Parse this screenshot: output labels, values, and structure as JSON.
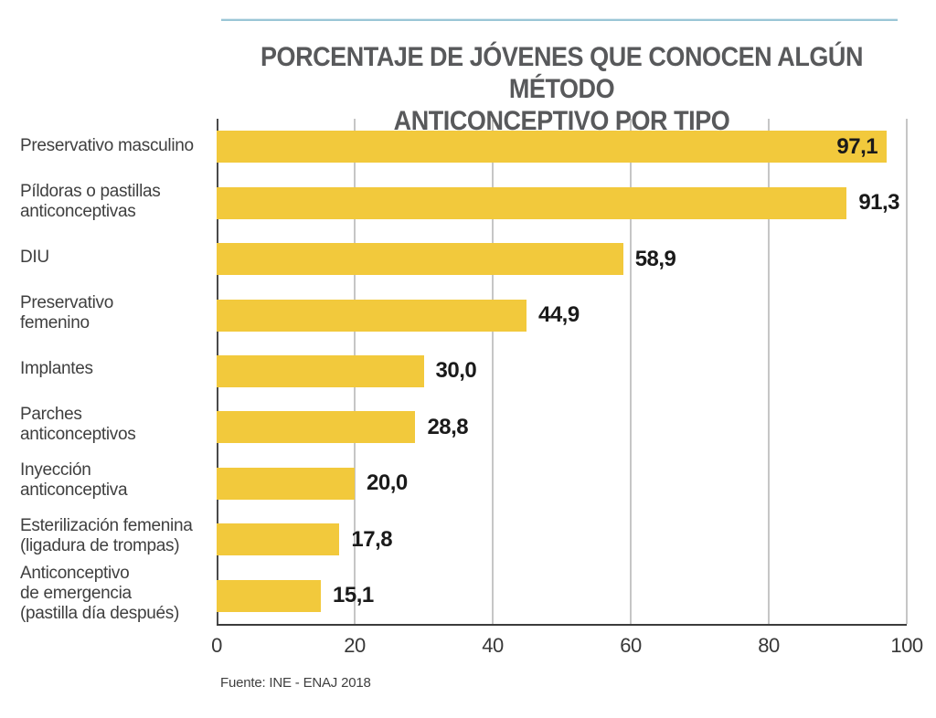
{
  "title": {
    "line1": "PORCENTAJE DE JÓVENES QUE CONOCEN ALGÚN MÉTODO",
    "line2": "ANTICONCEPTIVO POR TIPO"
  },
  "source": "Fuente: INE - ENAJ 2018",
  "axis": {
    "ticks": [
      "0",
      "20",
      "40",
      "60",
      "80",
      "100"
    ],
    "grid_values": [
      20,
      40,
      60,
      80,
      100
    ]
  },
  "rows": [
    {
      "lines": [
        "Preservativo masculino"
      ],
      "value": 97.1,
      "label": "97,1",
      "label_inside": true
    },
    {
      "lines": [
        "Píldoras o pastillas",
        "anticonceptivas"
      ],
      "value": 91.3,
      "label": "91,3",
      "label_inside": false
    },
    {
      "lines": [
        "DIU"
      ],
      "value": 58.9,
      "label": "58,9",
      "label_inside": false
    },
    {
      "lines": [
        "Preservativo",
        "femenino"
      ],
      "value": 44.9,
      "label": "44,9",
      "label_inside": false
    },
    {
      "lines": [
        "Implantes"
      ],
      "value": 30.0,
      "label": "30,0",
      "label_inside": false
    },
    {
      "lines": [
        "Parches",
        "anticonceptivos"
      ],
      "value": 28.8,
      "label": "28,8",
      "label_inside": false
    },
    {
      "lines": [
        "Inyección",
        "anticonceptiva"
      ],
      "value": 20.0,
      "label": "20,0",
      "label_inside": false
    },
    {
      "lines": [
        "Esterilización femenina",
        "(ligadura de trompas)"
      ],
      "value": 17.8,
      "label": "17,8",
      "label_inside": false
    },
    {
      "lines": [
        "Anticonceptivo",
        "de emergencia",
        "(pastilla día después)"
      ],
      "value": 15.1,
      "label": "15,1",
      "label_inside": false
    }
  ],
  "colors": {
    "bar": "#F2C93C",
    "accent_line": "#9AC6D6",
    "title_text": "#58595B",
    "label_text": "#3F3F3F",
    "value_text": "#1A1A1A"
  },
  "chart_data": {
    "type": "bar",
    "orientation": "horizontal",
    "title": "PORCENTAJE DE JÓVENES QUE CONOCEN ALGÚN MÉTODO ANTICONCEPTIVO POR TIPO",
    "categories": [
      "Preservativo masculino",
      "Píldoras o pastillas anticonceptivas",
      "DIU",
      "Preservativo femenino",
      "Implantes",
      "Parches anticonceptivos",
      "Inyección anticonceptiva",
      "Esterilización femenina (ligadura de trompas)",
      "Anticonceptivo de emergencia (pastilla día después)"
    ],
    "values": [
      97.1,
      91.3,
      58.9,
      44.9,
      30.0,
      28.8,
      20.0,
      17.8,
      15.1
    ],
    "value_labels": [
      "97,1",
      "91,3",
      "58,9",
      "44,9",
      "30,0",
      "28,8",
      "20,0",
      "17,8",
      "15,1"
    ],
    "xlabel": "",
    "ylabel": "",
    "xlim": [
      0,
      100
    ],
    "x_ticks": [
      0,
      20,
      40,
      60,
      80,
      100
    ],
    "grid": true,
    "legend": false,
    "bar_color": "#F2C93C",
    "source": "Fuente: INE - ENAJ 2018"
  }
}
